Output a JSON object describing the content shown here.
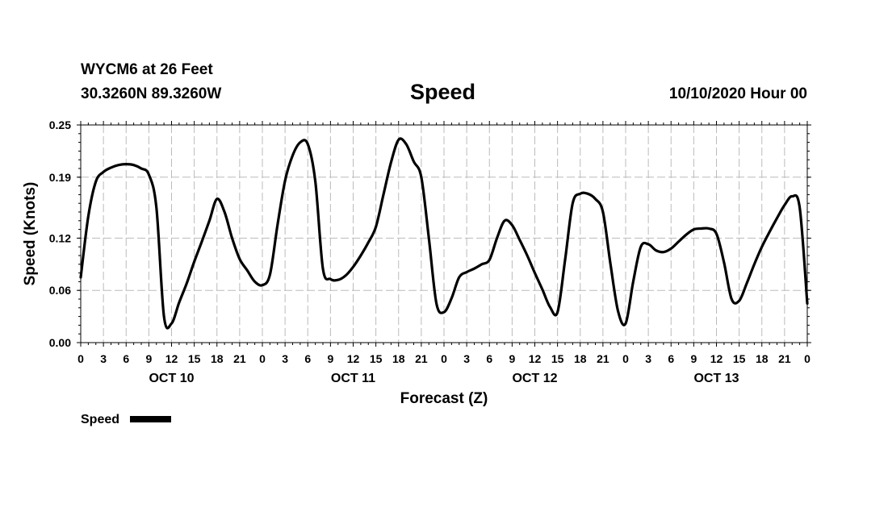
{
  "header": {
    "station": "WYCM6 at 26 Feet",
    "coords": "30.3260N 89.3260W",
    "title": "Speed",
    "forecast_time": "10/10/2020 Hour 00"
  },
  "colors": {
    "line": "#000000",
    "grid": "#bbbbbb",
    "background": "#ffffff"
  },
  "chart_data": {
    "type": "line",
    "title": "Speed",
    "xlabel": "Forecast (Z)",
    "ylabel": "Speed (Knots)",
    "xlim": [
      0,
      96
    ],
    "ylim": [
      0,
      0.25
    ],
    "yticks": [
      0,
      0.06,
      0.12,
      0.19,
      0.25
    ],
    "ytick_labels": [
      "0.00",
      "0.06",
      "0.12",
      "0.19",
      "0.25"
    ],
    "xticks": [
      0,
      3,
      6,
      9,
      12,
      15,
      18,
      21,
      24,
      27,
      30,
      33,
      36,
      39,
      42,
      45,
      48,
      51,
      54,
      57,
      60,
      63,
      66,
      69,
      72,
      75,
      78,
      81,
      84,
      87,
      90,
      93,
      96
    ],
    "xtick_labels": [
      "0",
      "3",
      "6",
      "9",
      "12",
      "15",
      "18",
      "21",
      "0",
      "3",
      "6",
      "9",
      "12",
      "15",
      "18",
      "21",
      "0",
      "3",
      "6",
      "9",
      "12",
      "15",
      "18",
      "21",
      "0",
      "3",
      "6",
      "9",
      "12",
      "15",
      "18",
      "21",
      "0"
    ],
    "day_labels": [
      {
        "label": "OCT 10",
        "x": 12
      },
      {
        "label": "OCT 11",
        "x": 36
      },
      {
        "label": "OCT 12",
        "x": 60
      },
      {
        "label": "OCT 13",
        "x": 84
      }
    ],
    "grid": true,
    "legend": {
      "position": "bottom-left",
      "label": "Speed"
    },
    "series": [
      {
        "name": "Speed",
        "x": [
          0,
          1,
          2,
          3,
          4,
          5,
          6,
          7,
          8,
          9,
          10,
          11,
          12,
          13,
          14,
          15,
          16,
          17,
          18,
          19,
          20,
          21,
          22,
          23,
          24,
          25,
          26,
          27,
          28,
          29,
          30,
          31,
          32,
          33,
          34,
          35,
          36,
          37,
          38,
          39,
          40,
          41,
          42,
          43,
          44,
          45,
          46,
          47,
          48,
          49,
          50,
          51,
          52,
          53,
          54,
          55,
          56,
          57,
          58,
          59,
          60,
          61,
          62,
          63,
          64,
          65,
          66,
          67,
          68,
          69,
          70,
          71,
          72,
          73,
          74,
          75,
          76,
          77,
          78,
          79,
          80,
          81,
          82,
          83,
          84,
          85,
          86,
          87,
          88,
          89,
          90,
          91,
          92,
          93,
          94,
          95,
          96
        ],
        "values": [
          0.075,
          0.145,
          0.185,
          0.196,
          0.201,
          0.204,
          0.205,
          0.204,
          0.2,
          0.193,
          0.155,
          0.03,
          0.022,
          0.046,
          0.068,
          0.093,
          0.116,
          0.14,
          0.165,
          0.15,
          0.12,
          0.096,
          0.083,
          0.07,
          0.066,
          0.078,
          0.135,
          0.186,
          0.215,
          0.23,
          0.228,
          0.185,
          0.085,
          0.073,
          0.072,
          0.077,
          0.087,
          0.1,
          0.115,
          0.133,
          0.17,
          0.207,
          0.233,
          0.228,
          0.208,
          0.19,
          0.12,
          0.045,
          0.035,
          0.051,
          0.075,
          0.081,
          0.085,
          0.09,
          0.095,
          0.12,
          0.14,
          0.135,
          0.118,
          0.1,
          0.08,
          0.061,
          0.041,
          0.035,
          0.095,
          0.16,
          0.171,
          0.171,
          0.165,
          0.15,
          0.09,
          0.036,
          0.022,
          0.07,
          0.11,
          0.113,
          0.106,
          0.104,
          0.108,
          0.116,
          0.124,
          0.13,
          0.131,
          0.131,
          0.125,
          0.092,
          0.05,
          0.048,
          0.068,
          0.09,
          0.11,
          0.127,
          0.143,
          0.158,
          0.168,
          0.155,
          0.045
        ]
      }
    ]
  }
}
